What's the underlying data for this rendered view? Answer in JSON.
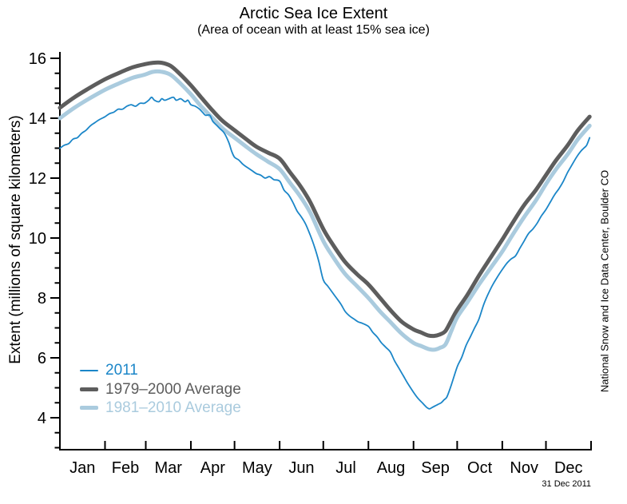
{
  "chart_data": {
    "type": "line",
    "title": "Arctic Sea Ice Extent",
    "subtitle": "(Area of ocean with at least 15% sea ice)",
    "ylabel": "Extent (millions of square kilometers)",
    "right_label": "National Snow and Ice Data Center, Boulder CO",
    "date_stamp": "31 Dec 2011",
    "grid": false,
    "legend_position": "lower-left",
    "x_axis": {
      "months": [
        "Jan",
        "Feb",
        "Mar",
        "Apr",
        "May",
        "Jun",
        "Jul",
        "Aug",
        "Sep",
        "Oct",
        "Nov",
        "Dec"
      ],
      "month_start_days": [
        0,
        31,
        59,
        90,
        120,
        151,
        181,
        212,
        243,
        273,
        304,
        334,
        365
      ]
    },
    "y_axis": {
      "major_ticks": [
        4,
        6,
        8,
        10,
        12,
        14,
        16
      ],
      "minor_step": 0.5,
      "ylim": [
        2.9,
        16.3
      ]
    },
    "series": [
      {
        "name": "2011",
        "color": "#1b86c8",
        "width": 1.8,
        "points": [
          [
            0,
            13.0
          ],
          [
            3,
            13.1
          ],
          [
            6,
            13.15
          ],
          [
            9,
            13.3
          ],
          [
            12,
            13.35
          ],
          [
            15,
            13.5
          ],
          [
            18,
            13.6
          ],
          [
            21,
            13.75
          ],
          [
            24,
            13.85
          ],
          [
            27,
            13.95
          ],
          [
            31,
            14.05
          ],
          [
            34,
            14.15
          ],
          [
            37,
            14.2
          ],
          [
            40,
            14.3
          ],
          [
            43,
            14.3
          ],
          [
            46,
            14.4
          ],
          [
            49,
            14.45
          ],
          [
            52,
            14.4
          ],
          [
            55,
            14.5
          ],
          [
            58,
            14.5
          ],
          [
            61,
            14.6
          ],
          [
            63,
            14.7
          ],
          [
            65,
            14.6
          ],
          [
            68,
            14.55
          ],
          [
            70,
            14.65
          ],
          [
            72,
            14.6
          ],
          [
            75,
            14.65
          ],
          [
            78,
            14.7
          ],
          [
            80,
            14.6
          ],
          [
            83,
            14.65
          ],
          [
            86,
            14.55
          ],
          [
            88,
            14.6
          ],
          [
            90,
            14.45
          ],
          [
            93,
            14.4
          ],
          [
            96,
            14.3
          ],
          [
            98,
            14.2
          ],
          [
            100,
            14.1
          ],
          [
            103,
            14.1
          ],
          [
            105,
            13.9
          ],
          [
            108,
            13.75
          ],
          [
            110,
            13.65
          ],
          [
            113,
            13.5
          ],
          [
            116,
            13.2
          ],
          [
            118,
            12.9
          ],
          [
            120,
            12.7
          ],
          [
            123,
            12.6
          ],
          [
            126,
            12.45
          ],
          [
            129,
            12.35
          ],
          [
            132,
            12.25
          ],
          [
            135,
            12.15
          ],
          [
            138,
            12.1
          ],
          [
            141,
            12.0
          ],
          [
            144,
            12.05
          ],
          [
            147,
            11.95
          ],
          [
            151,
            11.9
          ],
          [
            154,
            11.6
          ],
          [
            157,
            11.45
          ],
          [
            160,
            11.2
          ],
          [
            163,
            10.9
          ],
          [
            166,
            10.7
          ],
          [
            169,
            10.45
          ],
          [
            172,
            10.1
          ],
          [
            175,
            9.7
          ],
          [
            178,
            9.2
          ],
          [
            181,
            8.6
          ],
          [
            184,
            8.4
          ],
          [
            187,
            8.2
          ],
          [
            190,
            8.0
          ],
          [
            193,
            7.8
          ],
          [
            196,
            7.55
          ],
          [
            199,
            7.4
          ],
          [
            202,
            7.3
          ],
          [
            205,
            7.2
          ],
          [
            208,
            7.15
          ],
          [
            212,
            7.05
          ],
          [
            215,
            6.85
          ],
          [
            218,
            6.7
          ],
          [
            221,
            6.5
          ],
          [
            224,
            6.35
          ],
          [
            227,
            6.2
          ],
          [
            230,
            5.9
          ],
          [
            233,
            5.65
          ],
          [
            236,
            5.4
          ],
          [
            239,
            5.15
          ],
          [
            243,
            4.85
          ],
          [
            246,
            4.65
          ],
          [
            249,
            4.5
          ],
          [
            252,
            4.35
          ],
          [
            254,
            4.3
          ],
          [
            256,
            4.35
          ],
          [
            258,
            4.4
          ],
          [
            260,
            4.45
          ],
          [
            262,
            4.5
          ],
          [
            264,
            4.6
          ],
          [
            266,
            4.7
          ],
          [
            269,
            5.1
          ],
          [
            273,
            5.7
          ],
          [
            276,
            6.0
          ],
          [
            279,
            6.4
          ],
          [
            282,
            6.7
          ],
          [
            285,
            7.0
          ],
          [
            288,
            7.3
          ],
          [
            291,
            7.75
          ],
          [
            294,
            8.1
          ],
          [
            297,
            8.4
          ],
          [
            300,
            8.65
          ],
          [
            304,
            8.95
          ],
          [
            307,
            9.15
          ],
          [
            310,
            9.3
          ],
          [
            313,
            9.4
          ],
          [
            316,
            9.65
          ],
          [
            319,
            9.9
          ],
          [
            322,
            10.15
          ],
          [
            325,
            10.3
          ],
          [
            328,
            10.5
          ],
          [
            331,
            10.75
          ],
          [
            334,
            10.95
          ],
          [
            337,
            11.2
          ],
          [
            340,
            11.45
          ],
          [
            343,
            11.65
          ],
          [
            346,
            11.9
          ],
          [
            349,
            12.2
          ],
          [
            352,
            12.45
          ],
          [
            355,
            12.7
          ],
          [
            358,
            12.9
          ],
          [
            360,
            13.0
          ],
          [
            362,
            13.1
          ],
          [
            364,
            13.35
          ]
        ]
      },
      {
        "name": "1979–2000 Average",
        "color": "#5d5d5d",
        "width": 5,
        "points": [
          [
            0,
            14.35
          ],
          [
            10,
            14.7
          ],
          [
            20,
            15.0
          ],
          [
            31,
            15.3
          ],
          [
            40,
            15.5
          ],
          [
            50,
            15.7
          ],
          [
            58,
            15.8
          ],
          [
            64,
            15.85
          ],
          [
            70,
            15.85
          ],
          [
            76,
            15.75
          ],
          [
            82,
            15.5
          ],
          [
            90,
            15.1
          ],
          [
            97,
            14.7
          ],
          [
            105,
            14.25
          ],
          [
            112,
            13.9
          ],
          [
            120,
            13.6
          ],
          [
            128,
            13.3
          ],
          [
            135,
            13.05
          ],
          [
            143,
            12.85
          ],
          [
            151,
            12.65
          ],
          [
            158,
            12.2
          ],
          [
            165,
            11.75
          ],
          [
            172,
            11.2
          ],
          [
            181,
            10.3
          ],
          [
            188,
            9.75
          ],
          [
            196,
            9.2
          ],
          [
            204,
            8.8
          ],
          [
            212,
            8.45
          ],
          [
            220,
            8.0
          ],
          [
            227,
            7.6
          ],
          [
            235,
            7.2
          ],
          [
            243,
            6.95
          ],
          [
            248,
            6.85
          ],
          [
            253,
            6.75
          ],
          [
            257,
            6.73
          ],
          [
            261,
            6.78
          ],
          [
            265,
            6.9
          ],
          [
            269,
            7.25
          ],
          [
            273,
            7.6
          ],
          [
            280,
            8.1
          ],
          [
            288,
            8.75
          ],
          [
            296,
            9.35
          ],
          [
            304,
            9.95
          ],
          [
            311,
            10.5
          ],
          [
            319,
            11.1
          ],
          [
            327,
            11.6
          ],
          [
            334,
            12.1
          ],
          [
            341,
            12.6
          ],
          [
            349,
            13.1
          ],
          [
            356,
            13.6
          ],
          [
            364,
            14.05
          ]
        ]
      },
      {
        "name": "1981–2010 Average",
        "color": "#aacbde",
        "width": 5,
        "points": [
          [
            0,
            14.0
          ],
          [
            10,
            14.35
          ],
          [
            20,
            14.65
          ],
          [
            31,
            14.95
          ],
          [
            40,
            15.15
          ],
          [
            50,
            15.35
          ],
          [
            58,
            15.45
          ],
          [
            64,
            15.55
          ],
          [
            70,
            15.55
          ],
          [
            76,
            15.45
          ],
          [
            82,
            15.2
          ],
          [
            90,
            14.8
          ],
          [
            97,
            14.4
          ],
          [
            105,
            14.0
          ],
          [
            112,
            13.65
          ],
          [
            120,
            13.35
          ],
          [
            128,
            13.05
          ],
          [
            135,
            12.8
          ],
          [
            143,
            12.55
          ],
          [
            151,
            12.3
          ],
          [
            158,
            11.85
          ],
          [
            165,
            11.4
          ],
          [
            172,
            10.85
          ],
          [
            181,
            9.9
          ],
          [
            188,
            9.35
          ],
          [
            196,
            8.8
          ],
          [
            204,
            8.4
          ],
          [
            212,
            8.0
          ],
          [
            220,
            7.55
          ],
          [
            227,
            7.2
          ],
          [
            235,
            6.8
          ],
          [
            243,
            6.5
          ],
          [
            248,
            6.4
          ],
          [
            253,
            6.3
          ],
          [
            257,
            6.27
          ],
          [
            261,
            6.33
          ],
          [
            265,
            6.45
          ],
          [
            269,
            6.9
          ],
          [
            273,
            7.35
          ],
          [
            280,
            7.85
          ],
          [
            288,
            8.45
          ],
          [
            296,
            9.0
          ],
          [
            304,
            9.55
          ],
          [
            311,
            10.1
          ],
          [
            319,
            10.7
          ],
          [
            327,
            11.25
          ],
          [
            334,
            11.8
          ],
          [
            341,
            12.3
          ],
          [
            349,
            12.8
          ],
          [
            356,
            13.3
          ],
          [
            364,
            13.75
          ]
        ]
      }
    ]
  }
}
